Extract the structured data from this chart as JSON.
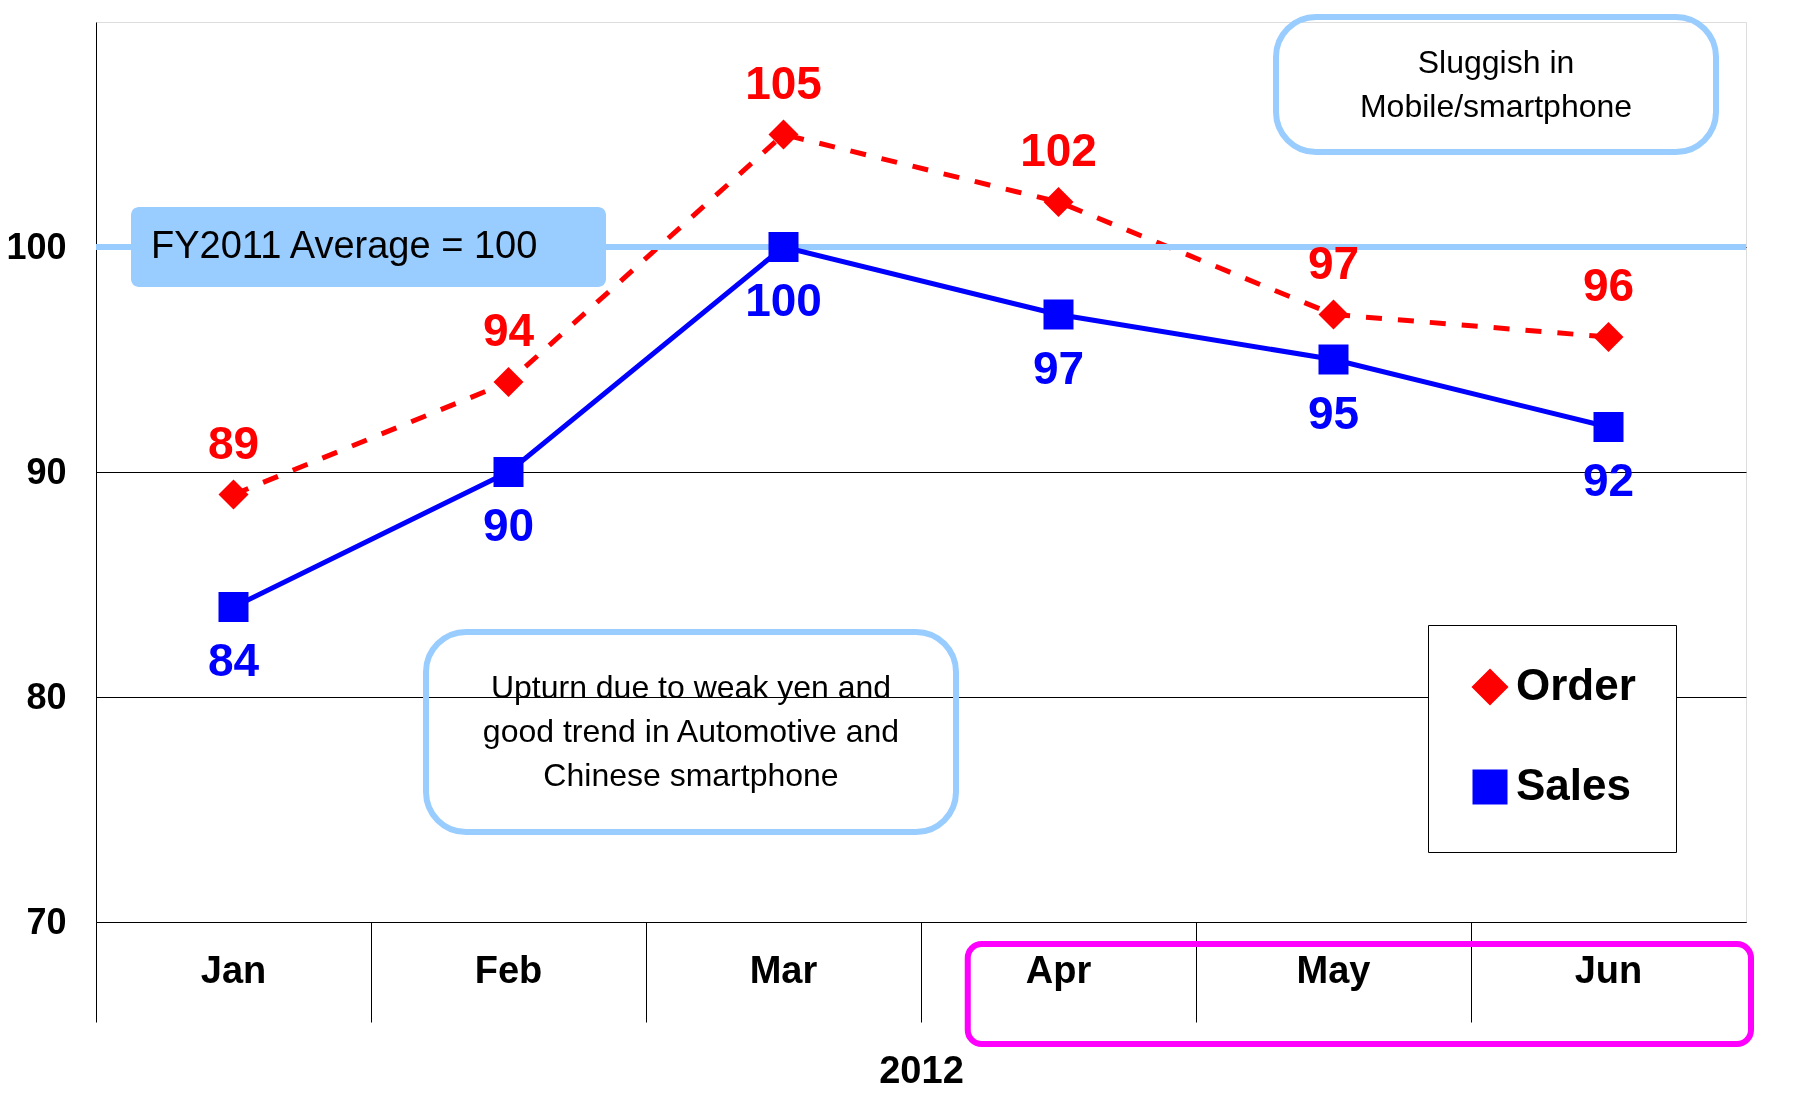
{
  "chart_data": {
    "type": "line",
    "xlabel": "2012",
    "categories": [
      "Jan",
      "Feb",
      "Mar",
      "Apr",
      "May",
      "Jun"
    ],
    "series": [
      {
        "name": "Order",
        "color": "#ff0000",
        "values": [
          89,
          94,
          105,
          102,
          97,
          96
        ],
        "marker": "diamond",
        "line_style": "dashed"
      },
      {
        "name": "Sales",
        "color": "#0000ff",
        "values": [
          84,
          90,
          100,
          97,
          95,
          92
        ],
        "marker": "square",
        "line_style": "solid"
      }
    ],
    "ylim": [
      70,
      110
    ],
    "yticks": [
      70,
      80,
      90,
      100
    ],
    "grid": "y",
    "legend": "bottom right",
    "data_labels": true,
    "ref_lines": [
      {
        "axis": "y",
        "value": 100,
        "label": "FY2011 Average = 100",
        "color": "#99ccff"
      }
    ],
    "annotations": [
      "Sluggish in Mobile/smartphone",
      "Upturn due to weak yen and good trend in Automotive and Chinese smartphone"
    ]
  }
}
